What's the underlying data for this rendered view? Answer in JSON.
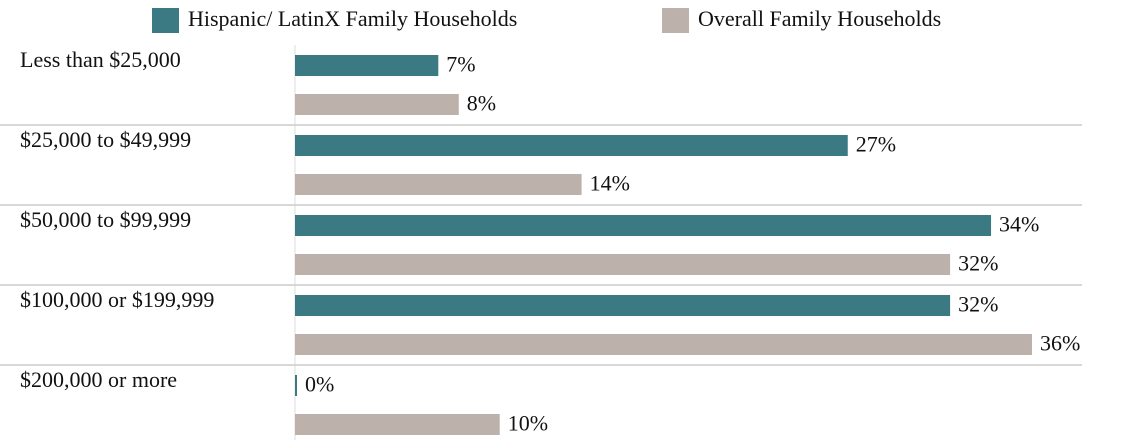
{
  "chart_data": {
    "type": "bar",
    "orientation": "horizontal",
    "categories": [
      "Less than $25,000",
      "$25,000 to $49,999",
      "$50,000 to $99,999",
      "$100,000 or $199,999",
      "$200,000 or more"
    ],
    "series": [
      {
        "name": "Hispanic/ LatinX Family Households",
        "color": "#3b7a82",
        "values": [
          7,
          27,
          34,
          32,
          0
        ],
        "value_labels": [
          "7%",
          "27%",
          "34%",
          "32%",
          "0%"
        ]
      },
      {
        "name": "Overall Family Households",
        "color": "#bcb1ab",
        "values": [
          8,
          14,
          32,
          36,
          10
        ],
        "value_labels": [
          "8%",
          "14%",
          "32%",
          "36%",
          "10%"
        ]
      }
    ],
    "legend": "top"
  }
}
